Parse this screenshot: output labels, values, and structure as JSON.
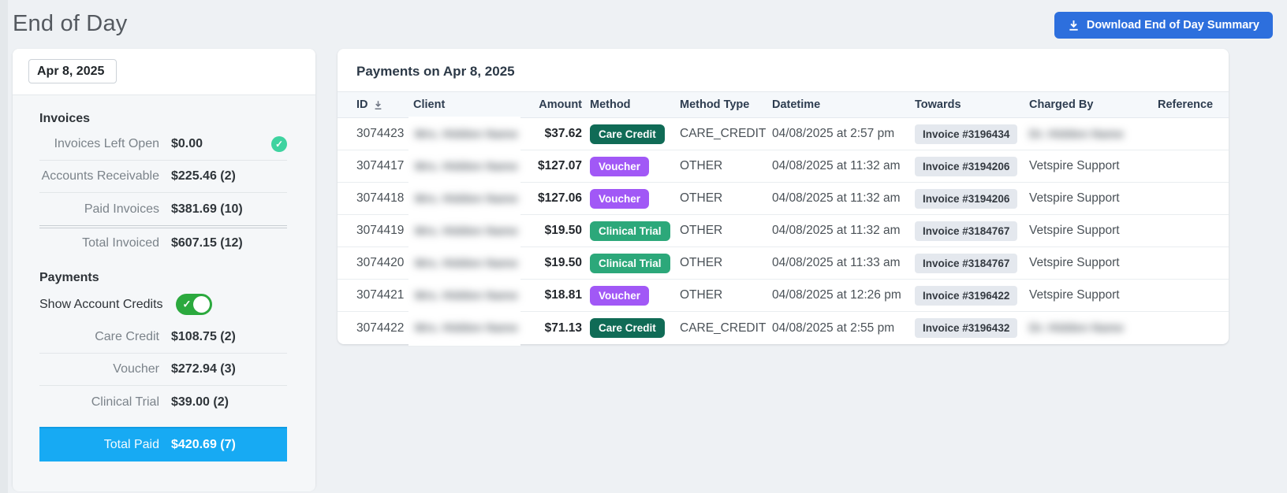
{
  "page": {
    "title": "End of Day",
    "download_button_label": "Download End of Day Summary"
  },
  "summary": {
    "date_value": "Apr 8, 2025",
    "invoices": {
      "heading": "Invoices",
      "rows": [
        {
          "label": "Invoices Left Open",
          "value": "$0.00",
          "check": true
        },
        {
          "label": "Accounts Receivable",
          "value": "$225.46 (2)"
        },
        {
          "label": "Paid Invoices",
          "value": "$381.69 (10)"
        },
        {
          "label": "Total Invoiced",
          "value": "$607.15 (12)"
        }
      ]
    },
    "payments": {
      "heading": "Payments",
      "toggle_label": "Show Account Credits",
      "toggle_state": "on",
      "rows": [
        {
          "label": "Care Credit",
          "value": "$108.75 (2)"
        },
        {
          "label": "Voucher",
          "value": "$272.94 (3)"
        },
        {
          "label": "Clinical Trial",
          "value": "$39.00 (2)"
        }
      ],
      "total": {
        "label": "Total Paid",
        "value": "$420.69 (7)"
      }
    }
  },
  "table": {
    "title": "Payments on Apr 8, 2025",
    "columns": [
      "ID",
      "Client",
      "Amount",
      "Method",
      "Method Type",
      "Datetime",
      "Towards",
      "Charged By",
      "Reference"
    ],
    "sorted_column": "ID",
    "redacted_client_text": "Mrs. Hidden Name",
    "redacted_staff_text": "Dr. Hidden Name",
    "rows": [
      {
        "id": "3074423",
        "client_redacted": true,
        "amount": "$37.62",
        "method": "Care Credit",
        "method_class": "care",
        "method_type": "CARE_CREDIT",
        "datetime": "04/08/2025 at 2:57 pm",
        "towards": "Invoice #3196434",
        "charged_by": "",
        "charged_by_redacted": true,
        "reference": ""
      },
      {
        "id": "3074417",
        "client_redacted": true,
        "amount": "$127.07",
        "method": "Voucher",
        "method_class": "voucher",
        "method_type": "OTHER",
        "datetime": "04/08/2025 at 11:32 am",
        "towards": "Invoice #3194206",
        "charged_by": "Vetspire Support",
        "charged_by_redacted": false,
        "reference": ""
      },
      {
        "id": "3074418",
        "client_redacted": true,
        "amount": "$127.06",
        "method": "Voucher",
        "method_class": "voucher",
        "method_type": "OTHER",
        "datetime": "04/08/2025 at 11:32 am",
        "towards": "Invoice #3194206",
        "charged_by": "Vetspire Support",
        "charged_by_redacted": false,
        "reference": ""
      },
      {
        "id": "3074419",
        "client_redacted": true,
        "amount": "$19.50",
        "method": "Clinical Trial",
        "method_class": "trial",
        "method_type": "OTHER",
        "datetime": "04/08/2025 at 11:32 am",
        "towards": "Invoice #3184767",
        "charged_by": "Vetspire Support",
        "charged_by_redacted": false,
        "reference": ""
      },
      {
        "id": "3074420",
        "client_redacted": true,
        "amount": "$19.50",
        "method": "Clinical Trial",
        "method_class": "trial",
        "method_type": "OTHER",
        "datetime": "04/08/2025 at 11:33 am",
        "towards": "Invoice #3184767",
        "charged_by": "Vetspire Support",
        "charged_by_redacted": false,
        "reference": ""
      },
      {
        "id": "3074421",
        "client_redacted": true,
        "amount": "$18.81",
        "method": "Voucher",
        "method_class": "voucher",
        "method_type": "OTHER",
        "datetime": "04/08/2025 at 12:26 pm",
        "towards": "Invoice #3196422",
        "charged_by": "Vetspire Support",
        "charged_by_redacted": false,
        "reference": ""
      },
      {
        "id": "3074422",
        "client_redacted": true,
        "amount": "$71.13",
        "method": "Care Credit",
        "method_class": "care",
        "method_type": "CARE_CREDIT",
        "datetime": "04/08/2025 at 2:55 pm",
        "towards": "Invoice #3196432",
        "charged_by": "",
        "charged_by_redacted": true,
        "reference": ""
      }
    ],
    "colors": {
      "care_credit_badge": "#106b56",
      "voucher_badge": "#a158f6",
      "clinical_trial_badge": "#2ca87a",
      "total_paid_highlight": "#17aaf3",
      "toggle_on": "#2ba93e",
      "check_circle": "#3ed3a0",
      "download_button": "#2d6fdd"
    }
  }
}
